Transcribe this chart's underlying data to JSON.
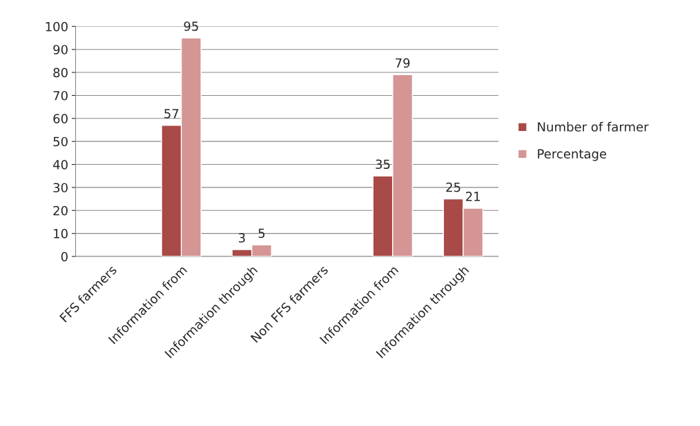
{
  "chart_data": {
    "type": "bar",
    "categories": [
      "FFS farmers",
      "Information from",
      "Information through",
      "Non FFS farmers",
      "Information from",
      "Information through"
    ],
    "series": [
      {
        "name": "Number of farmer",
        "color": "#a84a48",
        "values": [
          null,
          57,
          3,
          null,
          35,
          25
        ]
      },
      {
        "name": "Percentage",
        "color": "#d49594",
        "values": [
          null,
          95,
          5,
          null,
          79,
          21
        ]
      }
    ],
    "ylim": [
      0,
      100
    ],
    "yticks": [
      0,
      10,
      20,
      30,
      40,
      50,
      60,
      70,
      80,
      90,
      100
    ],
    "grid": "y",
    "legend": "right",
    "data_labels": true
  }
}
